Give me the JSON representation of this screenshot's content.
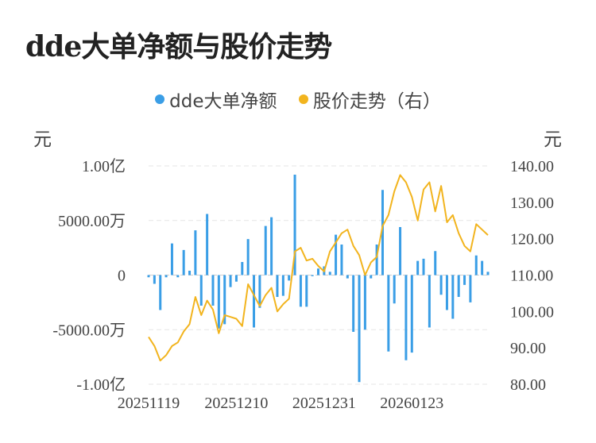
{
  "title": "dde大单净额与股价走势",
  "legend": [
    {
      "label": "dde大单净额",
      "color": "#3a9ee6"
    },
    {
      "label": "股价走势（右）",
      "color": "#f2b41e"
    }
  ],
  "units": {
    "left": "元",
    "right": "元"
  },
  "chart_data": {
    "type": "bar+line",
    "left_axis": {
      "min": -10000,
      "max": 10000,
      "unit": "万",
      "ticks": [
        {
          "value": 10000,
          "label": "1.00亿"
        },
        {
          "value": 5000,
          "label": "5000.00万"
        },
        {
          "value": 0,
          "label": "0"
        },
        {
          "value": -5000,
          "label": "-5000.00万"
        },
        {
          "value": -10000,
          "label": "-1.00亿"
        }
      ]
    },
    "right_axis": {
      "min": 80,
      "max": 140,
      "ticks": [
        {
          "value": 140,
          "label": "140.00"
        },
        {
          "value": 130,
          "label": "130.00"
        },
        {
          "value": 120,
          "label": "120.00"
        },
        {
          "value": 110,
          "label": "110.00"
        },
        {
          "value": 100,
          "label": "100.00"
        },
        {
          "value": 90,
          "label": "90.00"
        },
        {
          "value": 80,
          "label": "80.00"
        }
      ]
    },
    "x_ticks": [
      {
        "index": 0,
        "label": "20251119"
      },
      {
        "index": 15,
        "label": "20251210"
      },
      {
        "index": 30,
        "label": "20251231"
      },
      {
        "index": 45,
        "label": "20260123"
      }
    ],
    "grid": true,
    "series": [
      {
        "name": "dde大单净额",
        "type": "bar",
        "values": [
          -200,
          -800,
          -3200,
          -200,
          2900,
          -200,
          2300,
          400,
          4100,
          -2800,
          5600,
          -2800,
          -4900,
          -4500,
          -1100,
          -600,
          1200,
          3300,
          -4800,
          -3000,
          4500,
          5300,
          -2000,
          -1900,
          -500,
          9200,
          -2900,
          -2900,
          -100,
          600,
          800,
          300,
          3700,
          2800,
          -300,
          -5200,
          -9800,
          -5000,
          -300,
          2800,
          7800,
          -7000,
          -2600,
          4400,
          -7800,
          -7100,
          1300,
          1500,
          -4800,
          2200,
          -1800,
          -3200,
          -4000,
          -2000,
          -900,
          -2500,
          1800,
          1300,
          300
        ]
      },
      {
        "name": "股价走势（右）",
        "type": "line",
        "values": [
          93.0,
          90.5,
          86.5,
          88.0,
          90.5,
          91.5,
          94.5,
          96.5,
          104.0,
          99.0,
          103.0,
          100.5,
          94.0,
          99.0,
          98.5,
          98.0,
          96.0,
          107.5,
          104.5,
          101.5,
          104.5,
          106.5,
          100.0,
          102.0,
          103.5,
          116.5,
          117.5,
          114.0,
          114.5,
          112.5,
          111.0,
          116.5,
          119.0,
          121.5,
          122.5,
          118.0,
          115.5,
          110.0,
          113.5,
          115.0,
          123.5,
          126.5,
          133.0,
          137.5,
          135.5,
          131.5,
          125.0,
          133.5,
          135.5,
          127.5,
          134.5,
          124.5,
          126.5,
          121.5,
          118.0,
          116.5,
          124.0,
          122.5,
          121.0
        ]
      }
    ]
  }
}
